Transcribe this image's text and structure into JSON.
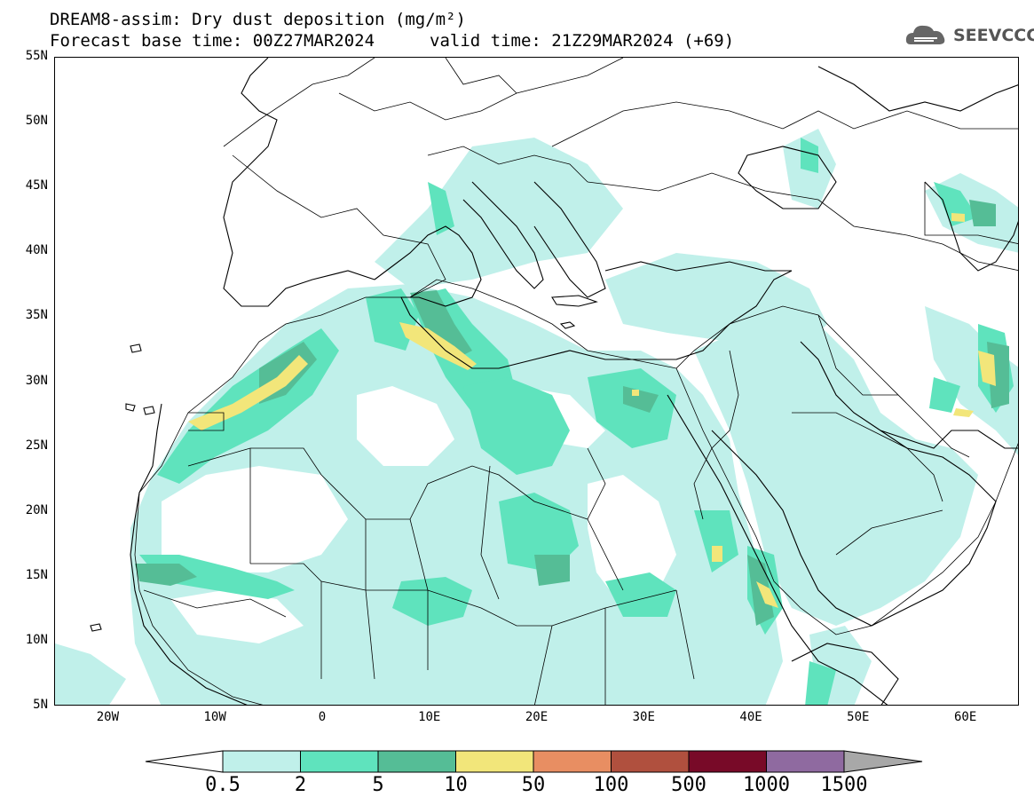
{
  "header": {
    "title_line1": "DREAM8-assim: Dry dust deposition (mg/m²)",
    "base_time": "Forecast base time: 00Z27MAR2024",
    "valid_time": "valid time: 21Z29MAR2024 (+69)"
  },
  "logo": {
    "text": "SEEVCCC",
    "icon": "cloud-logo-icon"
  },
  "map": {
    "extent": {
      "lon": [
        -25,
        65
      ],
      "lat": [
        5,
        55
      ]
    },
    "lat_labels": [
      "55N",
      "50N",
      "45N",
      "40N",
      "35N",
      "30N",
      "25N",
      "20N",
      "15N",
      "10N",
      "5N"
    ],
    "lon_labels": [
      "20W",
      "10W",
      "0",
      "10E",
      "20E",
      "30E",
      "40E",
      "50E",
      "60E"
    ]
  },
  "legend": {
    "levels": [
      "0.5",
      "2",
      "5",
      "10",
      "50",
      "100",
      "500",
      "1000",
      "1500"
    ],
    "colors": [
      "#c0f0ea",
      "#5fe3bd",
      "#55bd96",
      "#f2e67a",
      "#e88e62",
      "#b0503e",
      "#780a28",
      "#8f6aa0"
    ],
    "under_color": "#ffffff",
    "over_color": "#a8a8a8"
  }
}
